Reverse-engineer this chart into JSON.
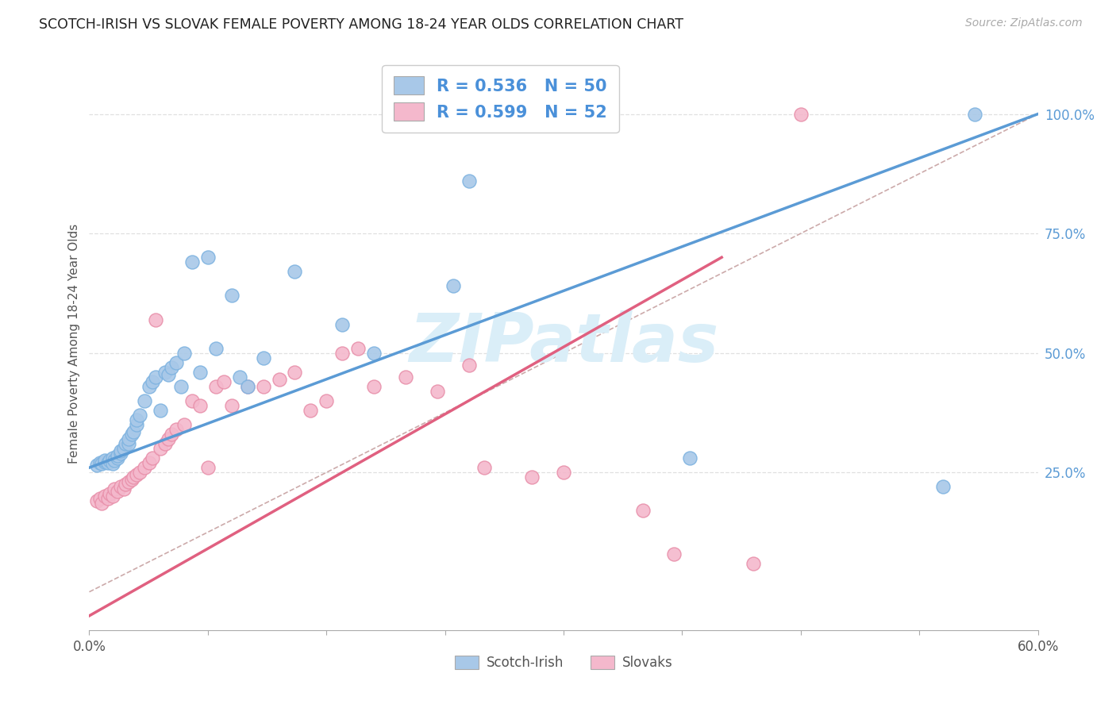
{
  "title": "SCOTCH-IRISH VS SLOVAK FEMALE POVERTY AMONG 18-24 YEAR OLDS CORRELATION CHART",
  "source": "Source: ZipAtlas.com",
  "ylabel": "Female Poverty Among 18-24 Year Olds",
  "x_min": 0.0,
  "x_max": 0.6,
  "y_min": -0.08,
  "y_max": 1.12,
  "scotch_irish_color": "#a8c8e8",
  "scotch_irish_edge": "#7eb3e0",
  "slovak_color": "#f4b8cc",
  "slovak_edge": "#e890aa",
  "scotch_irish_line_color": "#5b9bd5",
  "slovak_line_color": "#e06080",
  "ref_line_color": "#ddaaaa",
  "scotch_irish_R": 0.536,
  "scotch_irish_N": 50,
  "slovak_R": 0.599,
  "slovak_N": 52,
  "legend_label_1": "Scotch-Irish",
  "legend_label_2": "Slovaks",
  "watermark": "ZIPatlas",
  "watermark_color": "#daeef8",
  "right_tick_color": "#5b9bd5",
  "title_color": "#222222",
  "source_color": "#aaaaaa",
  "si_line_x0": 0.0,
  "si_line_y0": 0.26,
  "si_line_x1": 0.6,
  "si_line_y1": 1.0,
  "sk_line_x0": 0.0,
  "sk_line_y0": -0.05,
  "sk_line_x1": 0.4,
  "sk_line_y1": 0.7,
  "scotch_irish_x": [
    0.005,
    0.007,
    0.008,
    0.01,
    0.01,
    0.012,
    0.013,
    0.015,
    0.015,
    0.016,
    0.018,
    0.018,
    0.02,
    0.02,
    0.022,
    0.023,
    0.025,
    0.025,
    0.027,
    0.028,
    0.03,
    0.03,
    0.032,
    0.035,
    0.038,
    0.04,
    0.042,
    0.045,
    0.048,
    0.05,
    0.052,
    0.055,
    0.058,
    0.06,
    0.065,
    0.07,
    0.075,
    0.08,
    0.09,
    0.095,
    0.1,
    0.11,
    0.13,
    0.16,
    0.18,
    0.23,
    0.24,
    0.38,
    0.54,
    0.56
  ],
  "scotch_irish_y": [
    0.265,
    0.27,
    0.268,
    0.272,
    0.275,
    0.27,
    0.275,
    0.268,
    0.28,
    0.275,
    0.28,
    0.285,
    0.29,
    0.295,
    0.3,
    0.31,
    0.31,
    0.32,
    0.33,
    0.335,
    0.35,
    0.36,
    0.37,
    0.4,
    0.43,
    0.44,
    0.45,
    0.38,
    0.46,
    0.455,
    0.47,
    0.48,
    0.43,
    0.5,
    0.69,
    0.46,
    0.7,
    0.51,
    0.62,
    0.45,
    0.43,
    0.49,
    0.67,
    0.56,
    0.5,
    0.64,
    0.86,
    0.28,
    0.22,
    1.0
  ],
  "slovak_x": [
    0.005,
    0.007,
    0.008,
    0.01,
    0.012,
    0.013,
    0.015,
    0.016,
    0.018,
    0.02,
    0.022,
    0.023,
    0.025,
    0.027,
    0.028,
    0.03,
    0.032,
    0.035,
    0.038,
    0.04,
    0.042,
    0.045,
    0.048,
    0.05,
    0.052,
    0.055,
    0.06,
    0.065,
    0.07,
    0.075,
    0.08,
    0.085,
    0.09,
    0.1,
    0.11,
    0.12,
    0.13,
    0.14,
    0.15,
    0.16,
    0.17,
    0.18,
    0.2,
    0.22,
    0.24,
    0.25,
    0.28,
    0.3,
    0.35,
    0.37,
    0.42,
    0.45
  ],
  "slovak_y": [
    0.19,
    0.195,
    0.185,
    0.2,
    0.195,
    0.205,
    0.2,
    0.215,
    0.21,
    0.22,
    0.215,
    0.225,
    0.23,
    0.235,
    0.24,
    0.245,
    0.25,
    0.26,
    0.27,
    0.28,
    0.57,
    0.3,
    0.31,
    0.32,
    0.33,
    0.34,
    0.35,
    0.4,
    0.39,
    0.26,
    0.43,
    0.44,
    0.39,
    0.43,
    0.43,
    0.445,
    0.46,
    0.38,
    0.4,
    0.5,
    0.51,
    0.43,
    0.45,
    0.42,
    0.475,
    0.26,
    0.24,
    0.25,
    0.17,
    0.08,
    0.06,
    1.0
  ]
}
